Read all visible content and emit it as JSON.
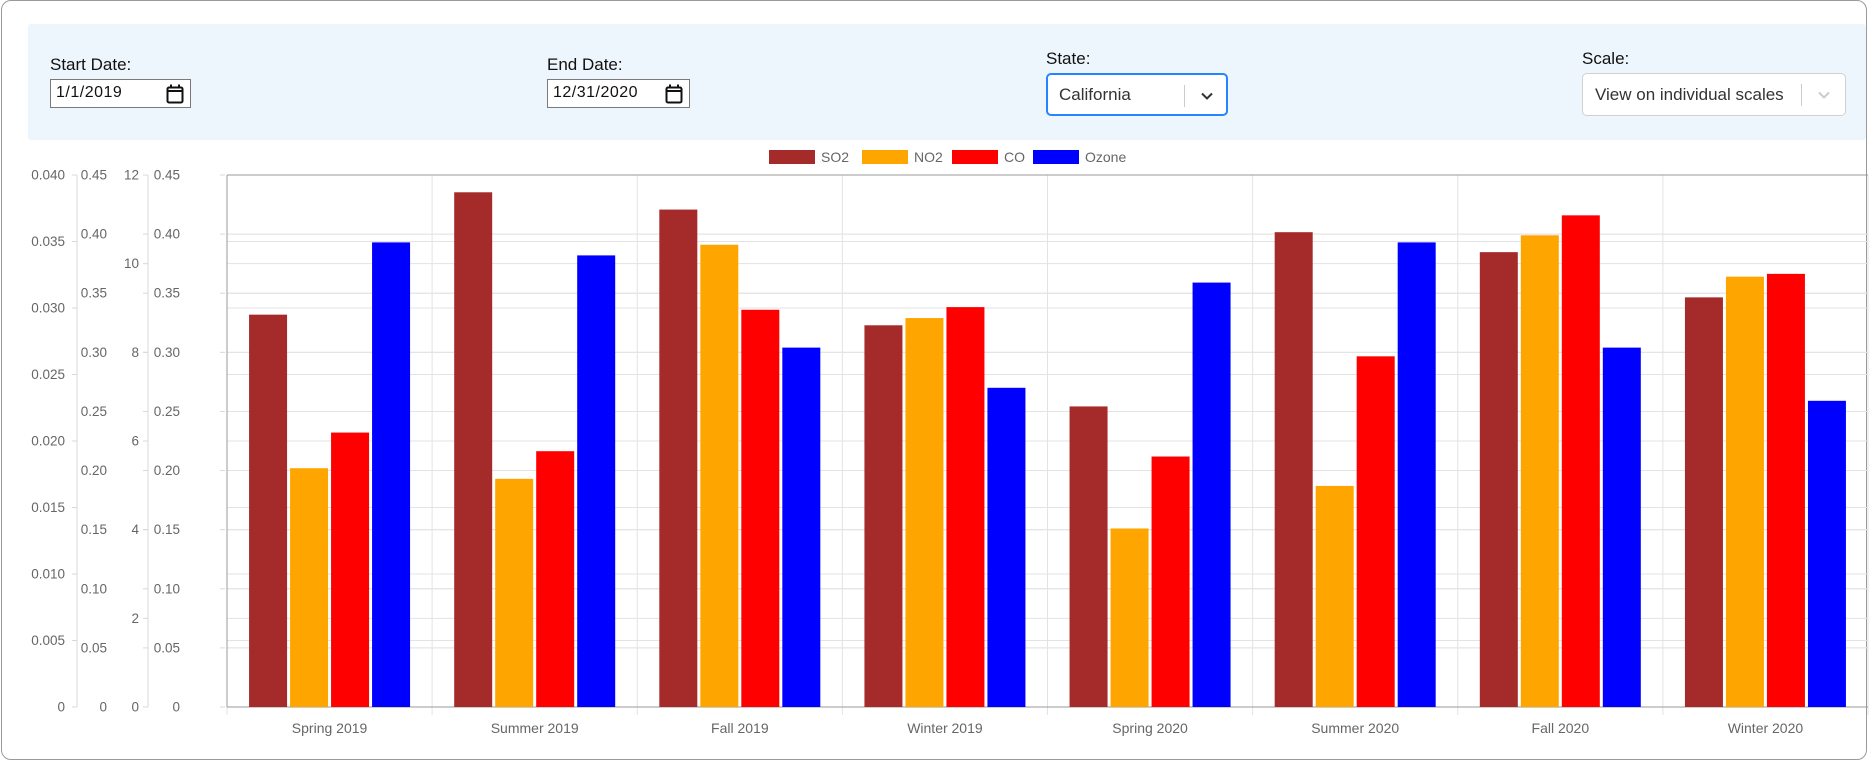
{
  "filters": {
    "start_label": "Start Date:",
    "start_value": "1/1/2019",
    "end_label": "End Date:",
    "end_value": "12/31/2020",
    "state_label": "State:",
    "state_value": "California",
    "scale_label": "Scale:",
    "scale_value": "View on individual scales"
  },
  "colors": {
    "SO2": "#a52a2a",
    "NO2": "#ffa500",
    "CO": "#ff0000",
    "Ozone": "#0000ff"
  },
  "chart_data": {
    "type": "bar",
    "categories": [
      "Spring 2019",
      "Summer 2019",
      "Fall 2019",
      "Winter 2019",
      "Spring 2020",
      "Summer 2020",
      "Fall 2020",
      "Winter 2020"
    ],
    "series": [
      {
        "name": "SO2",
        "axis": "y_so2",
        "values": [
          0.0295,
          0.0387,
          0.0374,
          0.0287,
          0.0226,
          0.0357,
          0.0342,
          0.0308
        ]
      },
      {
        "name": "NO2",
        "axis": "y_no2",
        "values": [
          0.202,
          0.193,
          0.391,
          0.329,
          0.151,
          0.187,
          0.399,
          0.364
        ]
      },
      {
        "name": "CO",
        "axis": "y_co",
        "values": [
          6.19,
          5.77,
          8.96,
          9.02,
          5.65,
          7.91,
          11.09,
          9.77
        ]
      },
      {
        "name": "Ozone",
        "axis": "y_ozone",
        "values": [
          0.393,
          0.382,
          0.304,
          0.27,
          0.359,
          0.393,
          0.304,
          0.259
        ]
      }
    ],
    "axes": {
      "y_so2": {
        "min": 0,
        "max": 0.04,
        "ticks": [
          "0",
          "0.005",
          "0.010",
          "0.015",
          "0.020",
          "0.025",
          "0.030",
          "0.035",
          "0.040"
        ]
      },
      "y_no2": {
        "min": 0,
        "max": 0.45,
        "ticks": [
          "0",
          "0.05",
          "0.10",
          "0.15",
          "0.20",
          "0.25",
          "0.30",
          "0.35",
          "0.40",
          "0.45"
        ]
      },
      "y_co": {
        "min": 0,
        "max": 12,
        "ticks": [
          "0",
          "2",
          "4",
          "6",
          "8",
          "10",
          "12"
        ]
      },
      "y_ozone": {
        "min": 0,
        "max": 0.45,
        "ticks": [
          "0",
          "0.05",
          "0.10",
          "0.15",
          "0.20",
          "0.25",
          "0.30",
          "0.35",
          "0.40",
          "0.45"
        ]
      }
    },
    "legend": "top-center",
    "grid": true
  }
}
